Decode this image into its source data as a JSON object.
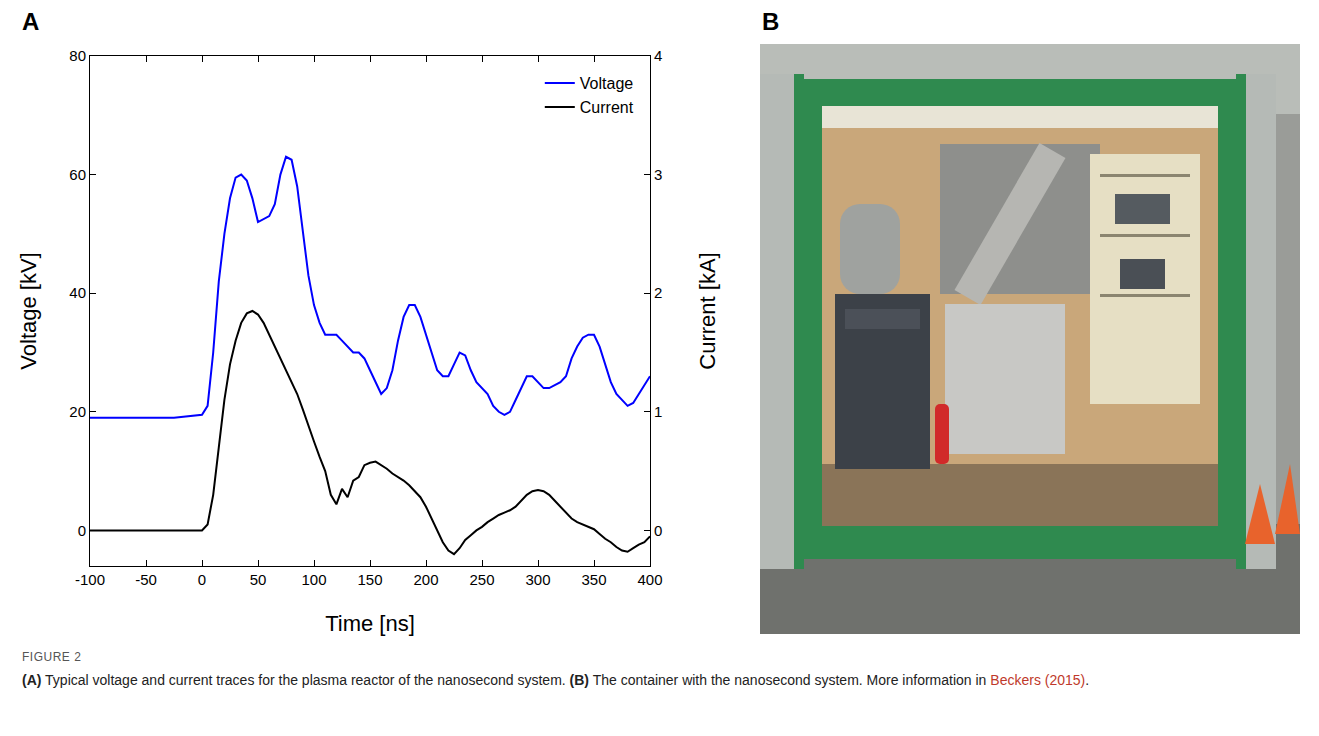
{
  "panel_labels": [
    "A",
    "B"
  ],
  "figure": {
    "label": "FIGURE 2",
    "caption": [
      {
        "text": "(A)",
        "style": "bold"
      },
      {
        "text": " Typical voltage and current traces for the plasma reactor of the nanosecond system. ",
        "style": "plain"
      },
      {
        "text": "(B)",
        "style": "bold"
      },
      {
        "text": " The container with the nanosecond system. More information in ",
        "style": "plain"
      },
      {
        "text": "Beckers (2015)",
        "style": "link"
      },
      {
        "text": ".",
        "style": "plain"
      }
    ]
  },
  "chart_data": {
    "type": "line",
    "x_label": "Time [ns]",
    "y_label": "Voltage [kV]",
    "y2_label": "Current [kA]",
    "x": [
      -100,
      -75,
      -50,
      -25,
      0,
      5,
      10,
      15,
      20,
      25,
      30,
      35,
      40,
      45,
      50,
      55,
      60,
      65,
      70,
      75,
      80,
      85,
      90,
      95,
      100,
      105,
      110,
      115,
      120,
      125,
      130,
      135,
      140,
      145,
      150,
      155,
      160,
      165,
      170,
      175,
      180,
      185,
      190,
      195,
      200,
      205,
      210,
      215,
      220,
      225,
      230,
      235,
      240,
      245,
      250,
      255,
      260,
      265,
      270,
      275,
      280,
      285,
      290,
      295,
      300,
      305,
      310,
      315,
      320,
      325,
      330,
      335,
      340,
      345,
      350,
      355,
      360,
      365,
      370,
      375,
      380,
      385,
      390,
      395,
      400
    ],
    "series": [
      {
        "name": "Voltage",
        "color": "#0000ff",
        "values": [
          19,
          19,
          19,
          19,
          19.5,
          21,
          30,
          42,
          50,
          56,
          59.5,
          60,
          59,
          56,
          52,
          52.5,
          53,
          55,
          60,
          63,
          62.5,
          58,
          50,
          43,
          38,
          35,
          33,
          33,
          33,
          32,
          31,
          30,
          30,
          29,
          27,
          25,
          23,
          24,
          27,
          32,
          36,
          38,
          38,
          36,
          33,
          30,
          27,
          26,
          26,
          28,
          30,
          29.5,
          27,
          25,
          24,
          23,
          21,
          20,
          19.5,
          20,
          22,
          24,
          26,
          26,
          25,
          24,
          24,
          24.5,
          25,
          26,
          29,
          31,
          32.5,
          33,
          33,
          31,
          28,
          25,
          23,
          22,
          21,
          21.5,
          23,
          24.5,
          26
        ]
      },
      {
        "name": "Current",
        "color": "#000000",
        "axis": "y2",
        "values": [
          0,
          0,
          0,
          0,
          0,
          0.05,
          0.3,
          0.7,
          1.1,
          1.4,
          1.6,
          1.75,
          1.83,
          1.85,
          1.82,
          1.75,
          1.65,
          1.55,
          1.45,
          1.35,
          1.25,
          1.15,
          1.02,
          0.88,
          0.75,
          0.62,
          0.5,
          0.3,
          0.22,
          0.35,
          0.28,
          0.42,
          0.45,
          0.55,
          0.57,
          0.58,
          0.55,
          0.52,
          0.48,
          0.45,
          0.42,
          0.38,
          0.33,
          0.28,
          0.2,
          0.1,
          0,
          -0.1,
          -0.17,
          -0.2,
          -0.15,
          -0.08,
          -0.04,
          0,
          0.03,
          0.07,
          0.1,
          0.13,
          0.15,
          0.17,
          0.2,
          0.25,
          0.3,
          0.33,
          0.34,
          0.33,
          0.3,
          0.25,
          0.2,
          0.15,
          0.1,
          0.07,
          0.05,
          0.03,
          0.01,
          -0.03,
          -0.07,
          -0.1,
          -0.14,
          -0.17,
          -0.18,
          -0.15,
          -0.12,
          -0.1,
          -0.05
        ]
      }
    ],
    "xlim": [
      -100,
      400
    ],
    "xticks": [
      -100,
      -50,
      0,
      50,
      100,
      150,
      200,
      250,
      300,
      350,
      400
    ],
    "ylim": [
      -6,
      80
    ],
    "yticks": [
      0,
      20,
      40,
      60,
      80
    ],
    "y2lim": [
      -0.3,
      4
    ],
    "y2ticks": [
      0,
      1,
      2,
      3,
      4
    ],
    "legend": "top-right",
    "grid": false
  }
}
